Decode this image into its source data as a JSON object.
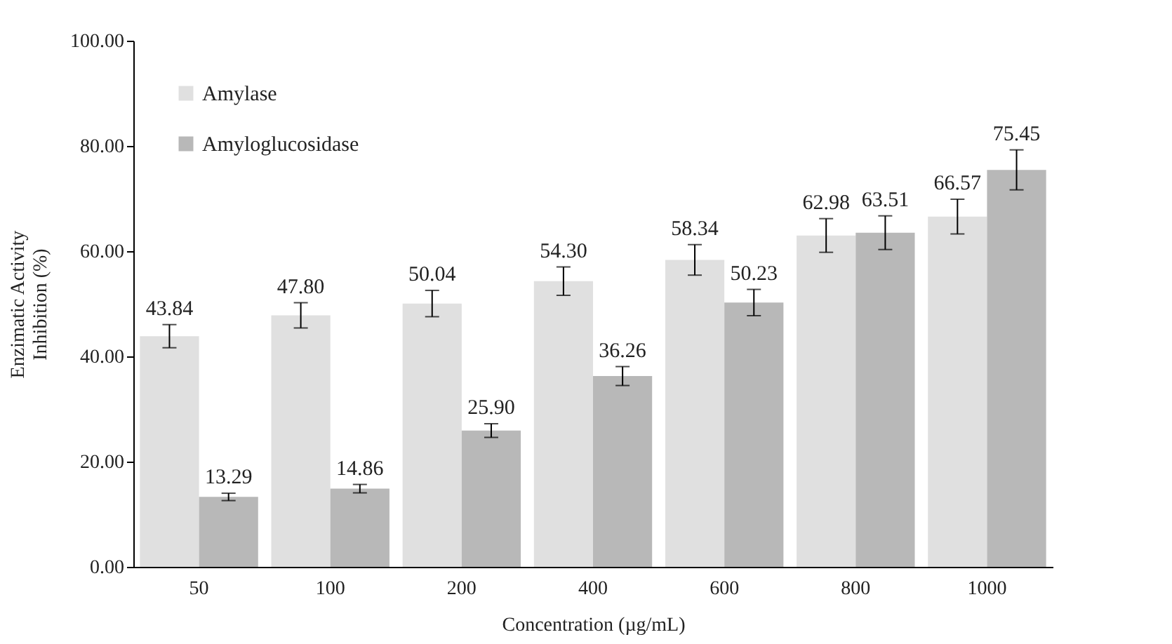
{
  "chart_data": {
    "type": "bar",
    "ylabel": "Enzimatic Activity\nInhibition (%)",
    "xlabel": "Concentration (µg/mL)",
    "categories": [
      "50",
      "100",
      "200",
      "400",
      "600",
      "800",
      "1000"
    ],
    "series": [
      {
        "name": "Amylase",
        "color": "#e0e0e0",
        "values": [
          43.84,
          47.8,
          50.04,
          54.3,
          58.34,
          62.98,
          66.57
        ],
        "errors": [
          2.2,
          2.4,
          2.5,
          2.7,
          2.9,
          3.2,
          3.3
        ],
        "value_labels": [
          "43.84",
          "47.80",
          "50.04",
          "54.30",
          "58.34",
          "62.98",
          "66.57"
        ]
      },
      {
        "name": "Amyloglucosidase",
        "color": "#b8b8b8",
        "values": [
          13.29,
          14.86,
          25.9,
          36.26,
          50.23,
          63.51,
          75.45
        ],
        "errors": [
          0.7,
          0.8,
          1.3,
          1.8,
          2.5,
          3.2,
          3.8
        ],
        "value_labels": [
          "13.29",
          "14.86",
          "25.90",
          "36.26",
          "50.23",
          "63.51",
          "75.45"
        ]
      }
    ],
    "ylim": [
      0,
      100
    ],
    "yticks": [
      {
        "value": 0,
        "label": "0.00"
      },
      {
        "value": 20,
        "label": "20.00"
      },
      {
        "value": 40,
        "label": "40.00"
      },
      {
        "value": 60,
        "label": "60.00"
      },
      {
        "value": 80,
        "label": "80.00"
      },
      {
        "value": 100,
        "label": "100.00"
      }
    ],
    "legend": "top left",
    "grid": false
  }
}
